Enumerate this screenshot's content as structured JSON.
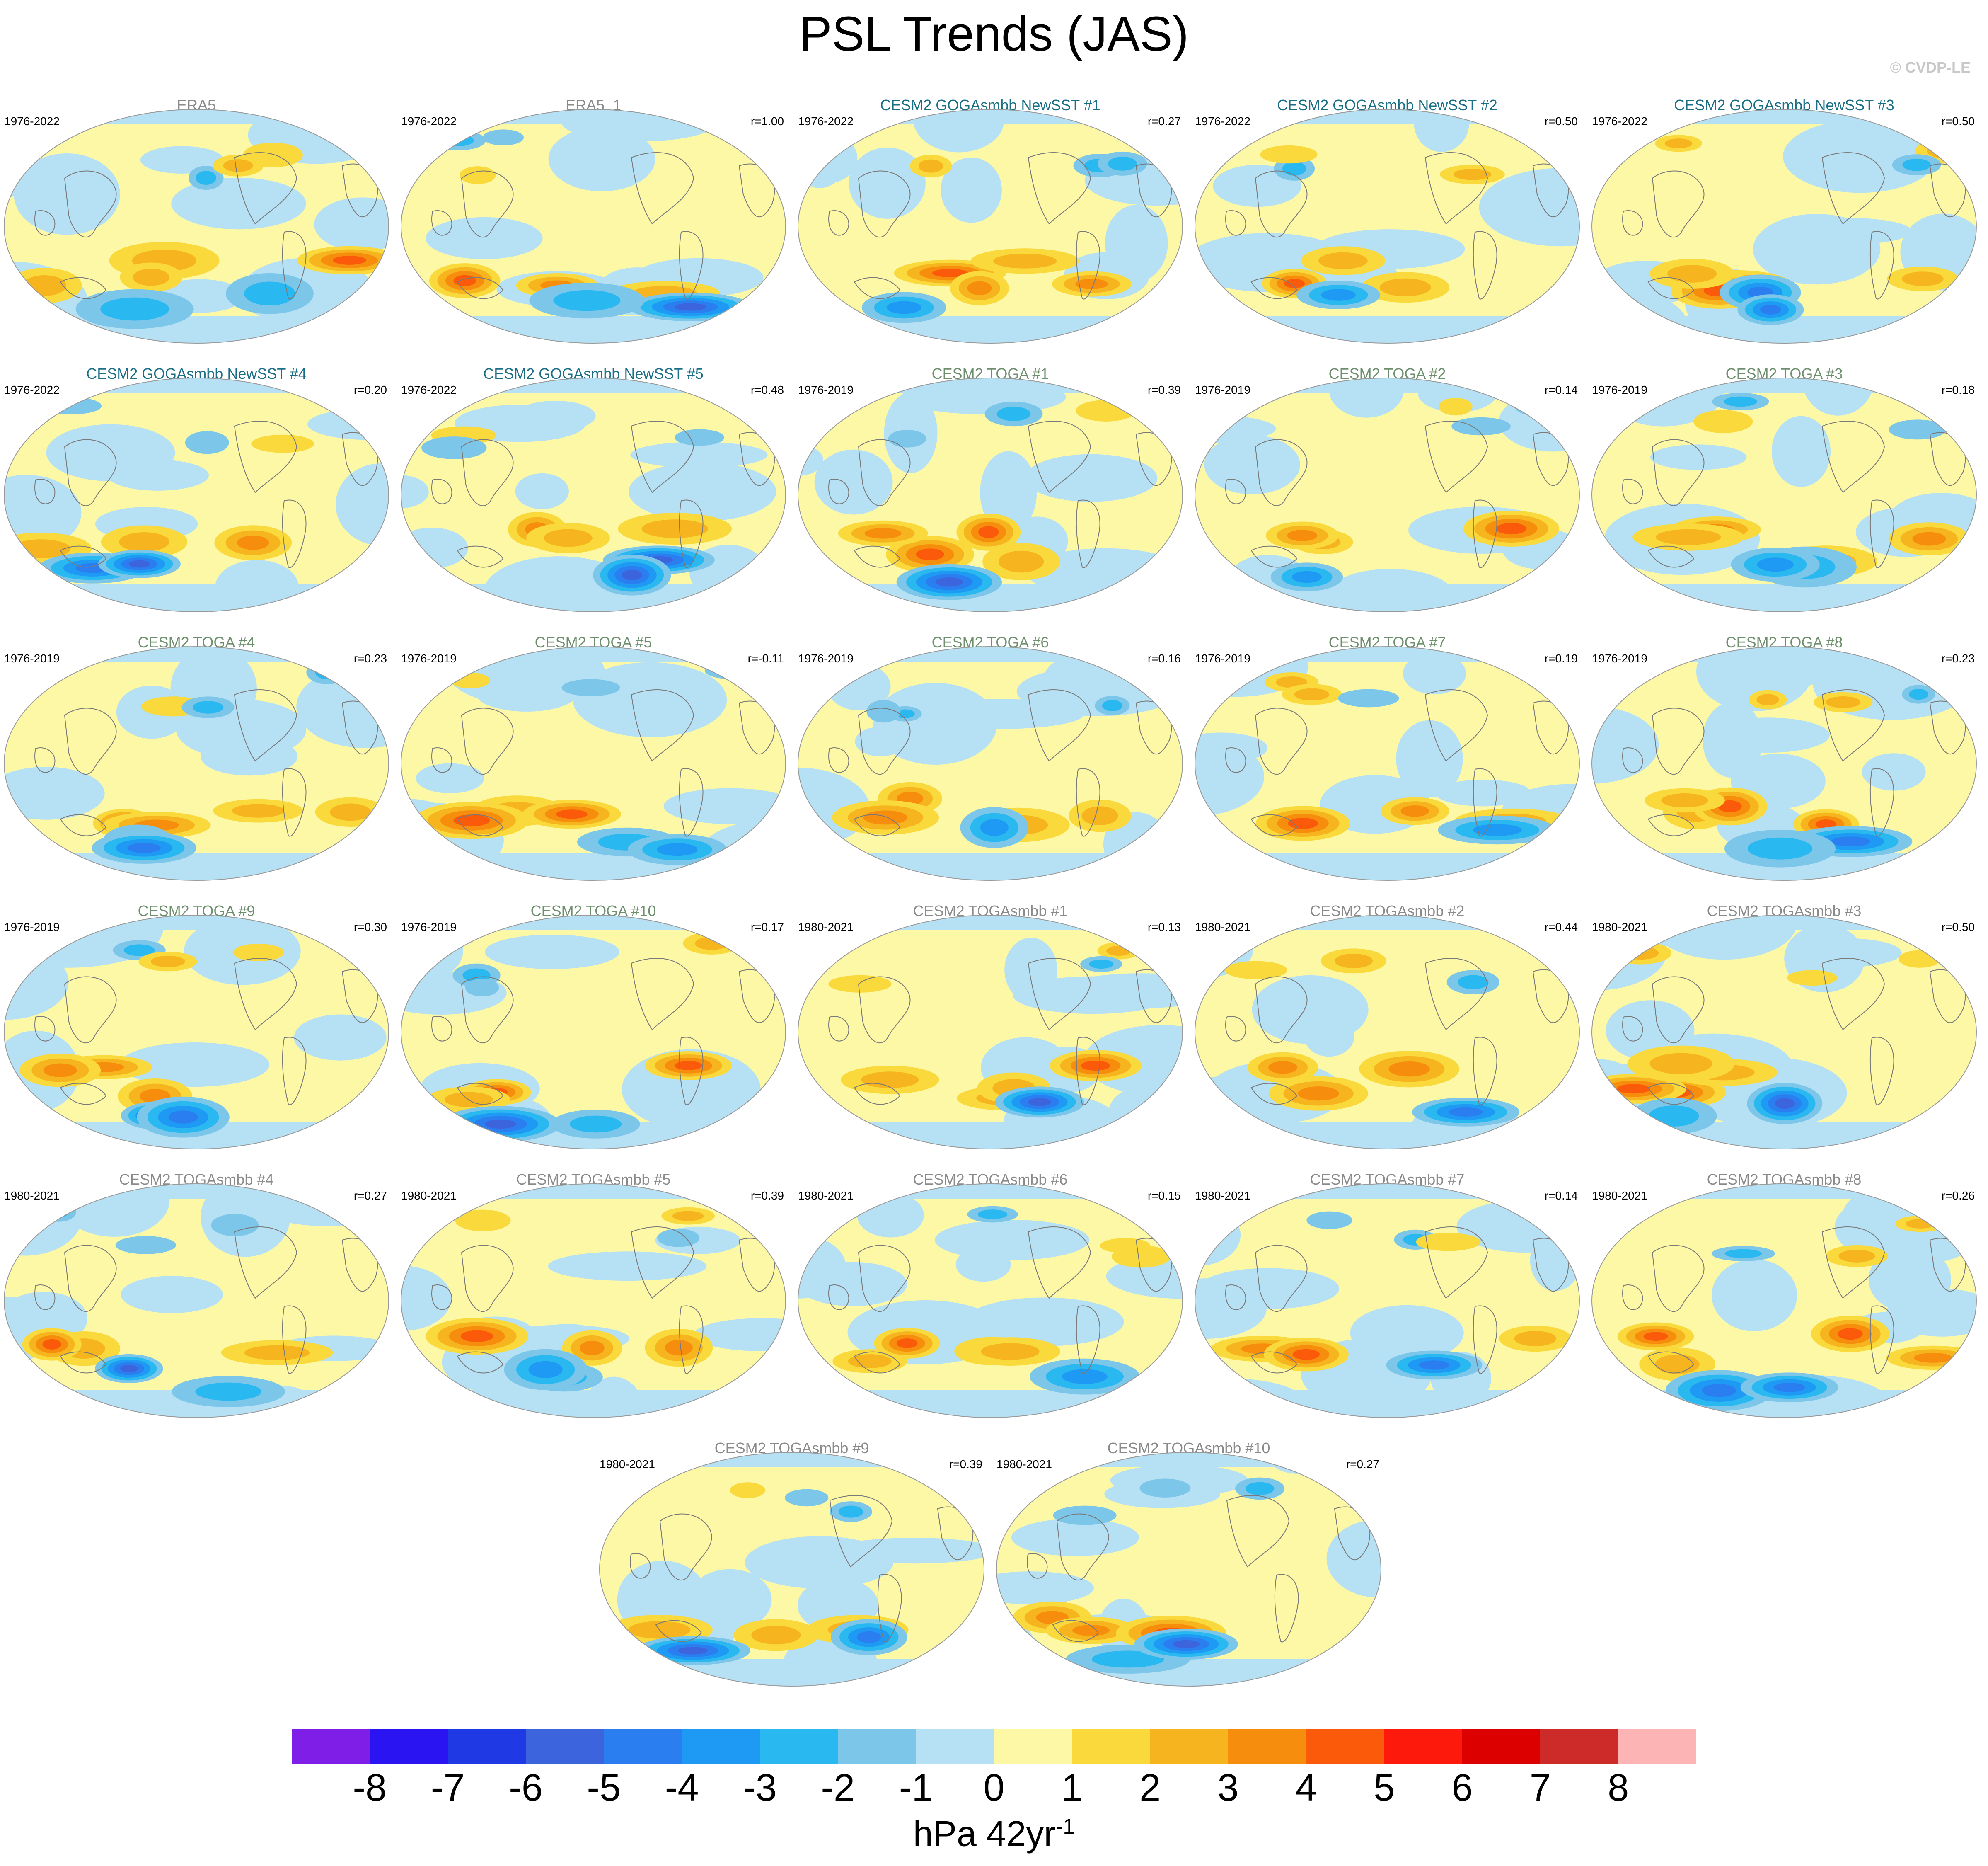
{
  "title": "PSL Trends (JAS)",
  "credit": "© CVDP-LE",
  "chart_data": {
    "type": "heatmap",
    "projection": "Robinson, Pacific-centered",
    "variable": "PSL",
    "season": "JAS",
    "colorbar": {
      "ticks": [
        "-8",
        "-7",
        "-6",
        "-5",
        "-4",
        "-3",
        "-2",
        "-1",
        "0",
        "1",
        "2",
        "3",
        "4",
        "5",
        "6",
        "7",
        "8"
      ],
      "colors": [
        "#7f1ee6",
        "#2a14f2",
        "#1f3ae4",
        "#3c64dc",
        "#2a7ef0",
        "#1e9af5",
        "#2ab8f0",
        "#7cc6ea",
        "#b6e0f4",
        "#fdf8a6",
        "#f9d93b",
        "#f6b41e",
        "#f78d0c",
        "#fa5a0a",
        "#fd1a0c",
        "#dc0000",
        "#cd2a2a",
        "#fcb4b4"
      ],
      "units_base": "hPa 42yr",
      "units_exp": "-1"
    },
    "panels": [
      {
        "title": "ERA5",
        "period": "1976-2022",
        "r": "",
        "group": "obs"
      },
      {
        "title": "ERA5_1",
        "period": "1976-2022",
        "r": "r=1.00",
        "group": "obs"
      },
      {
        "title": "CESM2 GOGAsmbb NewSST #1",
        "period": "1976-2022",
        "r": "r=0.27",
        "group": "newsst"
      },
      {
        "title": "CESM2 GOGAsmbb NewSST #2",
        "period": "1976-2022",
        "r": "r=0.50",
        "group": "newsst"
      },
      {
        "title": "CESM2 GOGAsmbb NewSST #3",
        "period": "1976-2022",
        "r": "r=0.50",
        "group": "newsst"
      },
      {
        "title": "CESM2 GOGAsmbb NewSST #4",
        "period": "1976-2022",
        "r": "r=0.20",
        "group": "newsst"
      },
      {
        "title": "CESM2 GOGAsmbb NewSST #5",
        "period": "1976-2022",
        "r": "r=0.48",
        "group": "newsst"
      },
      {
        "title": "CESM2 TOGA #1",
        "period": "1976-2019",
        "r": "r=0.39",
        "group": "toga"
      },
      {
        "title": "CESM2 TOGA #2",
        "period": "1976-2019",
        "r": "r=0.14",
        "group": "toga"
      },
      {
        "title": "CESM2 TOGA #3",
        "period": "1976-2019",
        "r": "r=0.18",
        "group": "toga"
      },
      {
        "title": "CESM2 TOGA #4",
        "period": "1976-2019",
        "r": "r=0.23",
        "group": "toga"
      },
      {
        "title": "CESM2 TOGA #5",
        "period": "1976-2019",
        "r": "r=-0.11",
        "group": "toga"
      },
      {
        "title": "CESM2 TOGA #6",
        "period": "1976-2019",
        "r": "r=0.16",
        "group": "toga"
      },
      {
        "title": "CESM2 TOGA #7",
        "period": "1976-2019",
        "r": "r=0.19",
        "group": "toga"
      },
      {
        "title": "CESM2 TOGA #8",
        "period": "1976-2019",
        "r": "r=0.23",
        "group": "toga"
      },
      {
        "title": "CESM2 TOGA #9",
        "period": "1976-2019",
        "r": "r=0.30",
        "group": "toga"
      },
      {
        "title": "CESM2 TOGA #10",
        "period": "1976-2019",
        "r": "r=0.17",
        "group": "toga"
      },
      {
        "title": "CESM2 TOGAsmbb #1",
        "period": "1980-2021",
        "r": "r=0.13",
        "group": "smbb"
      },
      {
        "title": "CESM2 TOGAsmbb #2",
        "period": "1980-2021",
        "r": "r=0.44",
        "group": "smbb"
      },
      {
        "title": "CESM2 TOGAsmbb #3",
        "period": "1980-2021",
        "r": "r=0.50",
        "group": "smbb"
      },
      {
        "title": "CESM2 TOGAsmbb #4",
        "period": "1980-2021",
        "r": "r=0.27",
        "group": "smbb"
      },
      {
        "title": "CESM2 TOGAsmbb #5",
        "period": "1980-2021",
        "r": "r=0.39",
        "group": "smbb"
      },
      {
        "title": "CESM2 TOGAsmbb #6",
        "period": "1980-2021",
        "r": "r=0.15",
        "group": "smbb"
      },
      {
        "title": "CESM2 TOGAsmbb #7",
        "period": "1980-2021",
        "r": "r=0.14",
        "group": "smbb"
      },
      {
        "title": "CESM2 TOGAsmbb #8",
        "period": "1980-2021",
        "r": "r=0.26",
        "group": "smbb"
      },
      {
        "title": "CESM2 TOGAsmbb #9",
        "period": "1980-2021",
        "r": "r=0.39",
        "group": "smbb"
      },
      {
        "title": "CESM2 TOGAsmbb #10",
        "period": "1980-2021",
        "r": "r=0.27",
        "group": "smbb"
      }
    ]
  }
}
